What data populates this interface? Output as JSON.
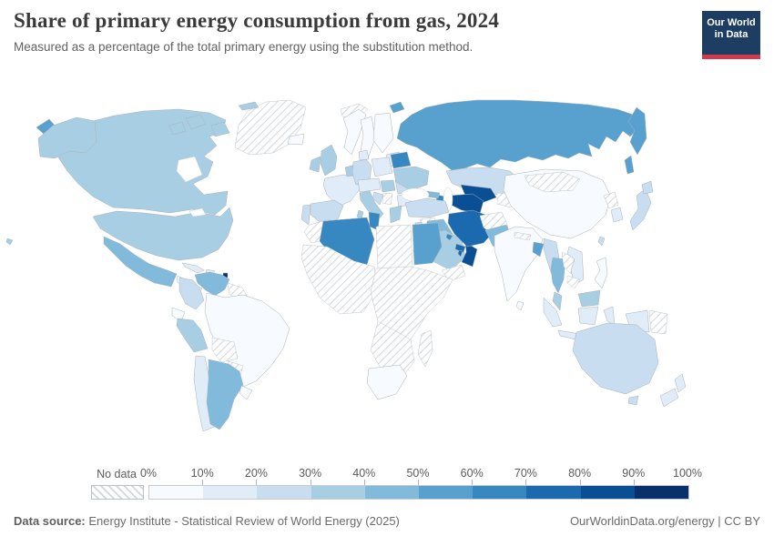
{
  "header": {
    "title": "Share of primary energy consumption from gas, 2024",
    "subtitle": "Measured as a percentage of the total primary energy using the substitution method.",
    "logo": {
      "line1": "Our World",
      "line2": "in Data",
      "bg_color": "#1d3d63",
      "accent_color": "#d13b4b"
    }
  },
  "legend": {
    "no_data_label": "No data",
    "ticks": [
      "0%",
      "10%",
      "20%",
      "30%",
      "40%",
      "50%",
      "60%",
      "70%",
      "80%",
      "90%",
      "100%"
    ],
    "colors": [
      "#f7fbff",
      "#e0ecf7",
      "#c8ddf0",
      "#a8cee4",
      "#81badb",
      "#58a1cf",
      "#3787c0",
      "#1b69af",
      "#0a4e94",
      "#08306b"
    ]
  },
  "footer": {
    "source_label": "Data source:",
    "source_text": " Energy Institute - Statistical Review of World Energy (2025)",
    "right_text": "OurWorldinData.org/energy | CC BY"
  },
  "chart_data": {
    "type": "heatmap",
    "subtype": "world-choropleth",
    "title": "Share of primary energy consumption from gas, 2024",
    "unit": "%",
    "bins": [
      0,
      10,
      20,
      30,
      40,
      50,
      60,
      70,
      80,
      90,
      100
    ],
    "no_data_style": "diagonal-hatch",
    "regions": {
      "greenland": {
        "name": "Greenland",
        "value": null
      },
      "canada": {
        "name": "Canada",
        "value": 33
      },
      "united-states": {
        "name": "United States",
        "value": 33
      },
      "mexico": {
        "name": "Mexico",
        "value": 45
      },
      "central-america": {
        "name": "Central America",
        "value": 5
      },
      "honduras-nicaragua": {
        "name": "Honduras/Nicaragua",
        "value": null
      },
      "cuba": {
        "name": "Cuba",
        "value": 15
      },
      "hispaniola": {
        "name": "Hispaniola",
        "value": 18
      },
      "trinidad-and-tobago": {
        "name": "Trinidad and Tobago",
        "value": 92
      },
      "venezuela": {
        "name": "Venezuela",
        "value": 42
      },
      "guyana-suriname": {
        "name": "Guyana/Suriname",
        "value": null
      },
      "colombia": {
        "name": "Colombia",
        "value": 22
      },
      "ecuador": {
        "name": "Ecuador",
        "value": 4
      },
      "peru": {
        "name": "Peru",
        "value": 32
      },
      "brazil": {
        "name": "Brazil",
        "value": 9
      },
      "bolivia": {
        "name": "Bolivia",
        "value": null
      },
      "paraguay": {
        "name": "Paraguay",
        "value": null
      },
      "chile": {
        "name": "Chile",
        "value": 14
      },
      "argentina": {
        "name": "Argentina",
        "value": 49
      },
      "uruguay": {
        "name": "Uruguay",
        "value": 3
      },
      "iceland": {
        "name": "Iceland",
        "value": 0.3
      },
      "svalbard": {
        "name": "Svalbard",
        "value": null
      },
      "norway": {
        "name": "Norway",
        "value": 2
      },
      "sweden": {
        "name": "Sweden",
        "value": 1
      },
      "finland": {
        "name": "Finland",
        "value": 3
      },
      "baltics": {
        "name": "Baltic states",
        "value": 12
      },
      "united-kingdom": {
        "name": "United Kingdom",
        "value": 32
      },
      "ireland": {
        "name": "Ireland",
        "value": 31
      },
      "france": {
        "name": "France",
        "value": 16
      },
      "spain": {
        "name": "Spain",
        "value": 22
      },
      "portugal": {
        "name": "Portugal",
        "value": 21
      },
      "benelux": {
        "name": "Netherlands/Belgium",
        "value": 35
      },
      "germany": {
        "name": "Germany",
        "value": 24
      },
      "denmark": {
        "name": "Denmark",
        "value": 10
      },
      "poland": {
        "name": "Poland",
        "value": 16
      },
      "czechia-austria": {
        "name": "Czechia/Austria",
        "value": 18
      },
      "italy": {
        "name": "Italy",
        "value": 37
      },
      "hungary": {
        "name": "Hungary",
        "value": 31
      },
      "croatia-bosnia": {
        "name": "Croatia/Bosnia",
        "value": 25
      },
      "serbia": {
        "name": "Serbia",
        "value": null
      },
      "romania": {
        "name": "Romania",
        "value": 28
      },
      "bulgaria": {
        "name": "Bulgaria",
        "value": 13
      },
      "greece": {
        "name": "Greece",
        "value": 30
      },
      "ukraine": {
        "name": "Ukraine",
        "value": 30
      },
      "belarus": {
        "name": "Belarus",
        "value": 62
      },
      "russia": {
        "name": "Russia",
        "value": 55
      },
      "kazakhstan": {
        "name": "Kazakhstan",
        "value": 27
      },
      "kyrgyzstan-tajikistan": {
        "name": "Kyrgyzstan/Tajikistan",
        "value": null
      },
      "uzbekistan": {
        "name": "Uzbekistan",
        "value": 84
      },
      "turkmenistan": {
        "name": "Turkmenistan",
        "value": 81
      },
      "azerbaijan": {
        "name": "Azerbaijan",
        "value": 65
      },
      "georgia": {
        "name": "Georgia",
        "value": 42
      },
      "turkey": {
        "name": "Turkey",
        "value": 27
      },
      "syria": {
        "name": "Syria",
        "value": null
      },
      "iraq": {
        "name": "Iraq",
        "value": 45
      },
      "israel-jordan": {
        "name": "Israel/Jordan",
        "value": 20
      },
      "saudi-arabia": {
        "name": "Saudi Arabia",
        "value": 38
      },
      "yemen": {
        "name": "Yemen",
        "value": null
      },
      "oman": {
        "name": "Oman",
        "value": 84
      },
      "united-arab-emirates": {
        "name": "United Arab Emirates",
        "value": 72
      },
      "kuwait": {
        "name": "Kuwait",
        "value": 60
      },
      "qatar": {
        "name": "Qatar",
        "value": 77
      },
      "iran": {
        "name": "Iran",
        "value": 70
      },
      "afghanistan": {
        "name": "Afghanistan",
        "value": null
      },
      "pakistan": {
        "name": "Pakistan",
        "value": 42
      },
      "india": {
        "name": "India",
        "value": 7
      },
      "nepal": {
        "name": "Nepal",
        "value": null
      },
      "bangladesh": {
        "name": "Bangladesh",
        "value": 56
      },
      "sri-lanka": {
        "name": "Sri Lanka",
        "value": 1
      },
      "myanmar": {
        "name": "Myanmar",
        "value": 23
      },
      "china": {
        "name": "China",
        "value": 9
      },
      "mongolia": {
        "name": "Mongolia",
        "value": null
      },
      "north-korea": {
        "name": "North Korea",
        "value": null
      },
      "south-korea": {
        "name": "South Korea",
        "value": 18
      },
      "japan": {
        "name": "Japan",
        "value": 22
      },
      "taiwan": {
        "name": "Taiwan",
        "value": 20
      },
      "thailand": {
        "name": "Thailand",
        "value": 45
      },
      "laos": {
        "name": "Laos",
        "value": null
      },
      "vietnam": {
        "name": "Vietnam",
        "value": 12
      },
      "cambodia": {
        "name": "Cambodia",
        "value": null
      },
      "malaysia": {
        "name": "Malaysia",
        "value": 38
      },
      "indonesia": {
        "name": "Indonesia",
        "value": 17
      },
      "philippines": {
        "name": "Philippines",
        "value": 6
      },
      "papua-new-guinea": {
        "name": "Papua New Guinea",
        "value": null
      },
      "morocco": {
        "name": "Morocco",
        "value": null
      },
      "algeria": {
        "name": "Algeria",
        "value": 66
      },
      "tunisia": {
        "name": "Tunisia",
        "value": 67
      },
      "libya": {
        "name": "Libya",
        "value": null
      },
      "egypt": {
        "name": "Egypt",
        "value": 56
      },
      "west-africa": {
        "name": "West Africa",
        "value": null
      },
      "central-east-africa": {
        "name": "Central/East Africa",
        "value": null
      },
      "southern-africa": {
        "name": "Southern Africa",
        "value": null
      },
      "south-africa": {
        "name": "South Africa",
        "value": 3
      },
      "madagascar": {
        "name": "Madagascar",
        "value": null
      },
      "australia": {
        "name": "Australia",
        "value": 27
      },
      "new-zealand": {
        "name": "New Zealand",
        "value": 14
      }
    }
  }
}
